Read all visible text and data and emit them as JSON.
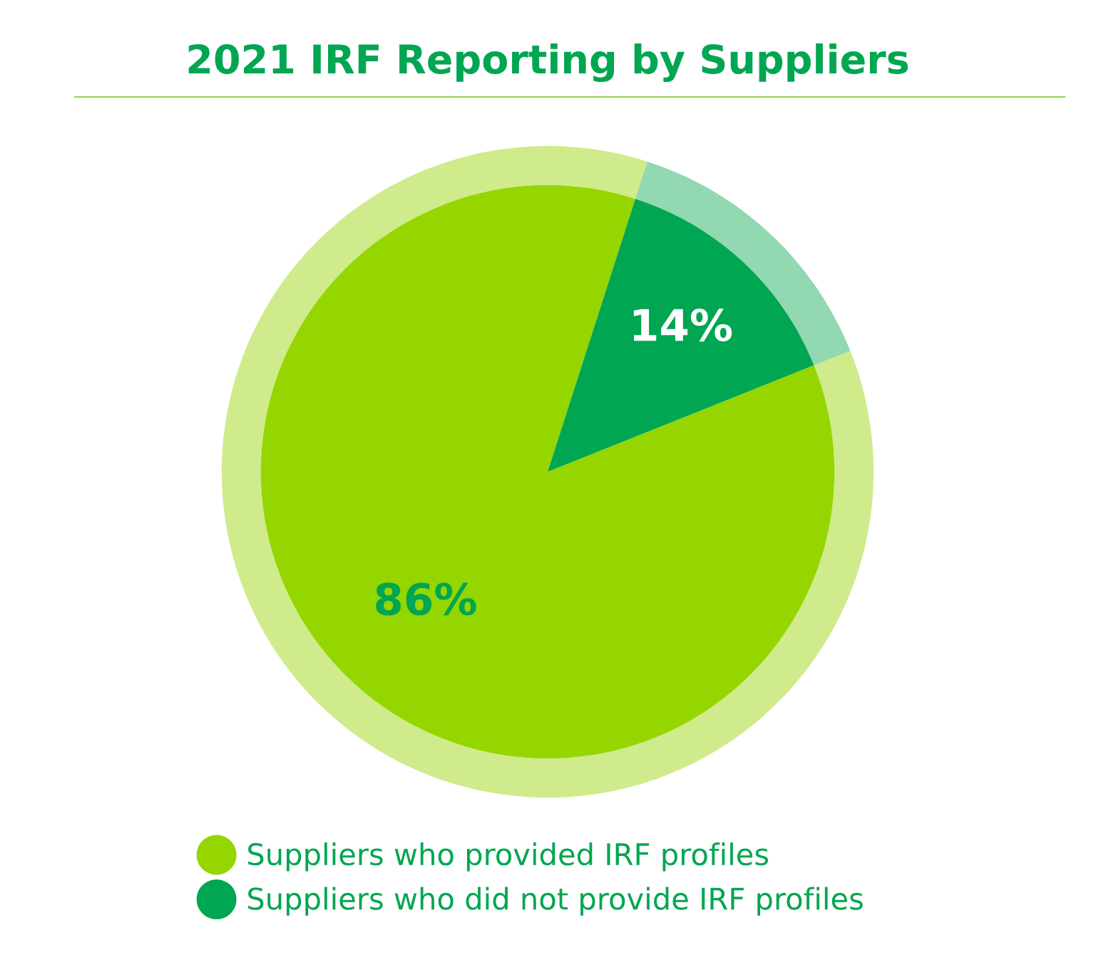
{
  "chart_data": {
    "type": "pie",
    "title": "2021 IRF Reporting by Suppliers",
    "categories": [
      "Suppliers who provided IRF profiles",
      "Suppliers who did not provide IRF profiles"
    ],
    "series": [
      {
        "type": "donut",
        "colors": [
          "#cfeb8c",
          "#92d8b0"
        ],
        "values": [
          86,
          14
        ]
      },
      {
        "colors": [
          "#95d600",
          "#00a651"
        ],
        "values": [
          86,
          14
        ],
        "value_labels": [
          "86%",
          "14%"
        ]
      }
    ],
    "legend": "bottom"
  }
}
